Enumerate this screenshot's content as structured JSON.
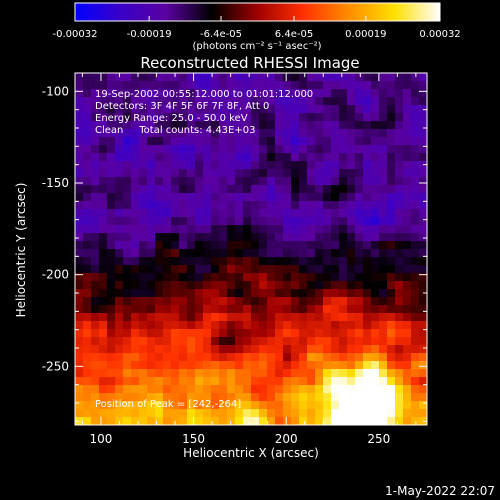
{
  "chart_data": {
    "type": "heatmap",
    "title": "Reconstructed RHESSI Image",
    "xlabel": "Heliocentric X (arcsec)",
    "ylabel": "Heliocentric Y (arcsec)",
    "xlim": [
      86,
      276
    ],
    "ylim": [
      -282,
      -90
    ],
    "x_ticks": [
      100,
      150,
      200,
      250
    ],
    "y_ticks": [
      -100,
      -150,
      -200,
      -250
    ],
    "colorbar": {
      "range": [
        -0.00032,
        0.00032
      ],
      "ticks": [
        -0.00032,
        -0.00019,
        -6.4e-05,
        6.4e-05,
        0.00019,
        0.00032
      ],
      "tick_labels": [
        "-0.00032",
        "-0.00019",
        "-6.4e-05",
        "6.4e-05",
        "0.00019",
        "0.00032"
      ],
      "unit_label": "(photons cm⁻² s⁻¹ asec⁻²)",
      "colors": [
        "#0000ff",
        "#3a00c8",
        "#5a00a0",
        "#000000",
        "#a00000",
        "#ff3000",
        "#ff8c00",
        "#ffe000",
        "#ffffff"
      ]
    },
    "annotations": [
      "19-Sep-2002 00:55:12.000 to 01:01:12.000",
      "Detectors: 3F 4F 5F 6F 7F 8F, Att 0",
      "Energy Range: 25.0 - 50.0 keV",
      "Clean     Total counts: 4.43E+03"
    ],
    "peak_label": "Position of Peak = [242,-264]",
    "peak": [
      242,
      -264
    ],
    "timestamp": "1-May-2022 22:07"
  }
}
